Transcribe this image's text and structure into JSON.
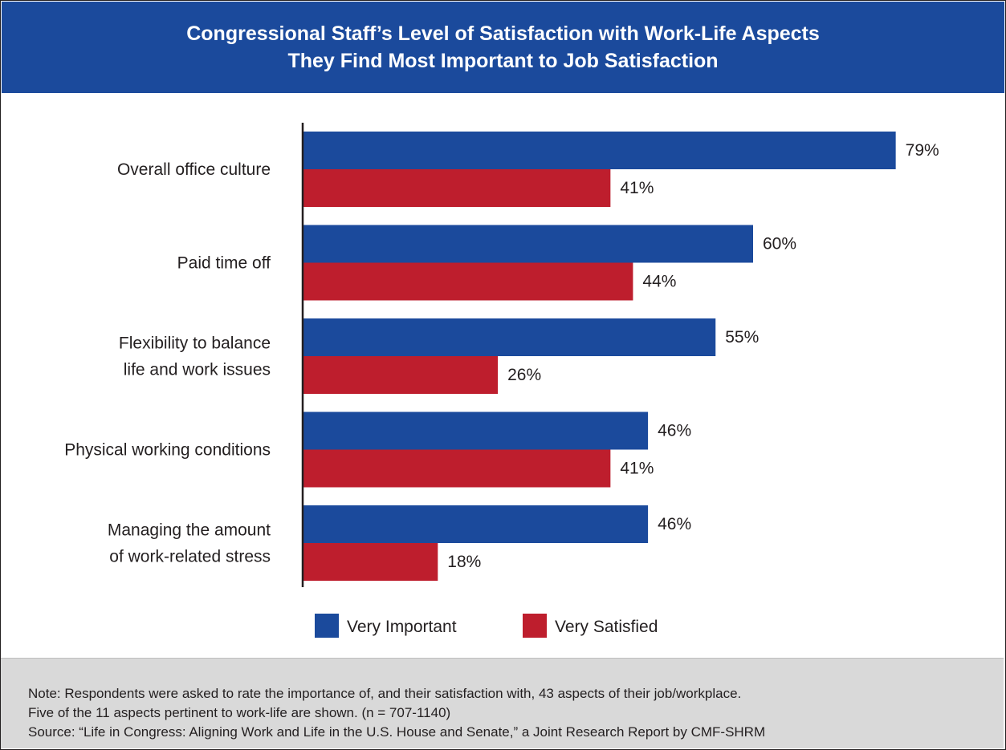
{
  "header": {
    "title_line1": "Congressional Staff’s Level of Satisfaction with Work-Life Aspects",
    "title_line2": "They Find Most Important to Job Satisfaction"
  },
  "chart_data": {
    "type": "bar",
    "orientation": "horizontal",
    "title": "Congressional Staff’s Level of Satisfaction with Work-Life Aspects They Find Most Important to Job Satisfaction",
    "categories": [
      [
        "Overall office culture"
      ],
      [
        "Paid time off"
      ],
      [
        "Flexibility to balance",
        "life and work issues"
      ],
      [
        "Physical working conditions"
      ],
      [
        "Managing the amount",
        "of work-related stress"
      ]
    ],
    "series": [
      {
        "name": "Very Important",
        "color": "#1b4a9c",
        "values": [
          79,
          60,
          55,
          46,
          46
        ]
      },
      {
        "name": "Very Satisfied",
        "color": "#be1e2d",
        "values": [
          41,
          44,
          26,
          41,
          18
        ]
      }
    ],
    "value_suffix": "%",
    "xlim": [
      0,
      100
    ],
    "grid": false,
    "legend_position": "bottom"
  },
  "note": {
    "line1": "Note: Respondents were asked to rate the importance of, and their satisfaction with, 43 aspects of their job/workplace.",
    "line2": "Five of the 11 aspects pertinent to work-life are shown. (n = 707-1140)",
    "line3": "Source: “Life in Congress: Aligning Work and Life in the U.S. House and Senate,” a Joint Research Report by CMF-SHRM"
  }
}
